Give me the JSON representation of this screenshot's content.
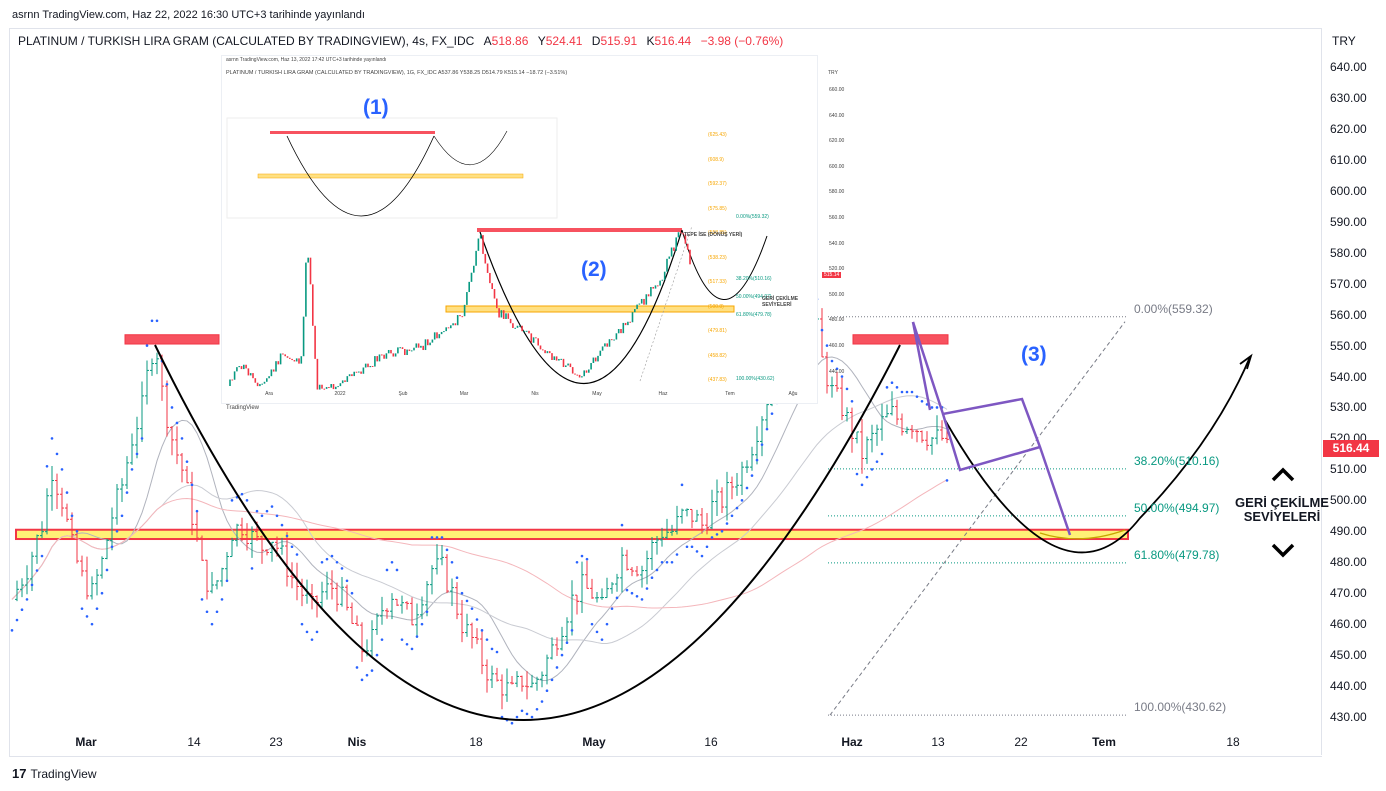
{
  "header": {
    "publisher_line": "asrnn TradingView.com, Haz 22, 2022 16:30 UTC+3 tarihinde yayınlandı",
    "symbol": "PLATINUM / TURKISH LIRA GRAM (CALCULATED BY TRADINGVIEW), 4s, FX_IDC",
    "open_label": "A",
    "open_value": "518.86",
    "high_label": "Y",
    "high_value": "524.41",
    "low_label": "D",
    "low_value": "515.91",
    "close_label": "K",
    "close_value": "516.44",
    "change": "−3.98 (−0.76%)",
    "currency": "TRY"
  },
  "price_badge": "516.44",
  "annotations": {
    "label_3": "(3)",
    "geri_line1": "GERİ ÇEKİLME",
    "geri_line2": "SEVİYELERİ"
  },
  "fib_levels": [
    {
      "label": "0.00%(559.32)",
      "price": 559.32,
      "color": "#787b86"
    },
    {
      "label": "38.20%(510.16)",
      "price": 510.16,
      "color": "#089981"
    },
    {
      "label": "50.00%(494.97)",
      "price": 494.97,
      "color": "#089981"
    },
    {
      "label": "61.80%(479.78)",
      "price": 479.78,
      "color": "#089981"
    },
    {
      "label": "100.00%(430.62)",
      "price": 430.62,
      "color": "#787b86"
    }
  ],
  "footer": {
    "logo_text": "TradingView",
    "logo_mark": "17"
  },
  "colors": {
    "up": "#089981",
    "down": "#f23645",
    "accent": "#2962ff",
    "pattern": "#7e57c2",
    "zone": "#ffeb3b",
    "resistance": "#f23645"
  },
  "chart_data": {
    "type": "candlestick",
    "timeframe": "4s",
    "currency": "TRY",
    "y_ticks": [
      "640.00",
      "630.00",
      "620.00",
      "610.00",
      "600.00",
      "590.00",
      "580.00",
      "570.00",
      "560.00",
      "550.00",
      "540.00",
      "530.00",
      "520.00",
      "510.00",
      "500.00",
      "490.00",
      "480.00",
      "470.00",
      "460.00",
      "450.00",
      "440.00",
      "430.00"
    ],
    "ylim": [
      428,
      644
    ],
    "x_ticks": [
      {
        "label": "Mar",
        "bold": true
      },
      {
        "label": "14",
        "bold": false
      },
      {
        "label": "23",
        "bold": false
      },
      {
        "label": "Nis",
        "bold": true
      },
      {
        "label": "18",
        "bold": false
      },
      {
        "label": "May",
        "bold": true
      },
      {
        "label": "16",
        "bold": false
      },
      {
        "label": "Haz",
        "bold": true
      },
      {
        "label": "13",
        "bold": false
      },
      {
        "label": "22",
        "bold": false
      },
      {
        "label": "Tem",
        "bold": true
      },
      {
        "label": "18",
        "bold": false
      }
    ],
    "price_path": [
      [
        0,
        468
      ],
      [
        3,
        478
      ],
      [
        6,
        492
      ],
      [
        8,
        510
      ],
      [
        10,
        500
      ],
      [
        12,
        485
      ],
      [
        14,
        475
      ],
      [
        16,
        470
      ],
      [
        18,
        480
      ],
      [
        20,
        495
      ],
      [
        22,
        505
      ],
      [
        24,
        520
      ],
      [
        26,
        530
      ],
      [
        27,
        540
      ],
      [
        28,
        548
      ],
      [
        29,
        548
      ],
      [
        30,
        535
      ],
      [
        32,
        520
      ],
      [
        34,
        510
      ],
      [
        36,
        495
      ],
      [
        38,
        478
      ],
      [
        40,
        470
      ],
      [
        42,
        478
      ],
      [
        44,
        490
      ],
      [
        46,
        492
      ],
      [
        48,
        488
      ],
      [
        50,
        485
      ],
      [
        52,
        488
      ],
      [
        54,
        482
      ],
      [
        56,
        475
      ],
      [
        58,
        470
      ],
      [
        60,
        465
      ],
      [
        62,
        470
      ],
      [
        64,
        472
      ],
      [
        66,
        468
      ],
      [
        68,
        460
      ],
      [
        70,
        452
      ],
      [
        72,
        455
      ],
      [
        74,
        465
      ],
      [
        76,
        470
      ],
      [
        78,
        465
      ],
      [
        80,
        462
      ],
      [
        82,
        470
      ],
      [
        84,
        478
      ],
      [
        86,
        478
      ],
      [
        88,
        470
      ],
      [
        90,
        460
      ],
      [
        92,
        455
      ],
      [
        94,
        448
      ],
      [
        96,
        442
      ],
      [
        98,
        440
      ],
      [
        100,
        438
      ],
      [
        102,
        442
      ],
      [
        104,
        440
      ],
      [
        106,
        445
      ],
      [
        108,
        452
      ],
      [
        110,
        460
      ],
      [
        112,
        468
      ],
      [
        114,
        472
      ],
      [
        116,
        470
      ],
      [
        118,
        465
      ],
      [
        120,
        475
      ],
      [
        122,
        482
      ],
      [
        124,
        480
      ],
      [
        126,
        478
      ],
      [
        128,
        485
      ],
      [
        130,
        490
      ],
      [
        132,
        490
      ],
      [
        134,
        495
      ],
      [
        136,
        495
      ],
      [
        138,
        492
      ],
      [
        140,
        498
      ],
      [
        142,
        500
      ],
      [
        144,
        505
      ],
      [
        146,
        510
      ],
      [
        148,
        518
      ],
      [
        150,
        528
      ],
      [
        152,
        538
      ],
      [
        154,
        545
      ],
      [
        156,
        548
      ],
      [
        158,
        550
      ],
      [
        160,
        556
      ],
      [
        161,
        555
      ],
      [
        162,
        545
      ],
      [
        164,
        535
      ],
      [
        166,
        530
      ],
      [
        168,
        522
      ],
      [
        170,
        515
      ],
      [
        172,
        520
      ],
      [
        174,
        525
      ],
      [
        176,
        528
      ],
      [
        178,
        525
      ],
      [
        180,
        525
      ],
      [
        182,
        522
      ],
      [
        184,
        520
      ],
      [
        186,
        520
      ],
      [
        187,
        516.44
      ]
    ],
    "bars_to_date": 187,
    "resistance": {
      "low": 550.5,
      "high": 553.5
    },
    "support_zone": {
      "low": 487.5,
      "high": 490.5
    },
    "fib_retracement": {
      "high": 559.32,
      "low": 430.62,
      "levels": [
        0,
        38.2,
        50,
        61.8,
        100
      ]
    },
    "target_projection": {
      "peak": 546
    },
    "inset_chart": {
      "label_1": "(1)",
      "label_2": "(2)",
      "header": "PLATINUM / TURKISH LIRA GRAM (CALCULATED BY TRADINGVIEW), 1G, FX_IDC  A537.86  Y538.25  D514.79  K515.14  −18.72 (−3.51%)",
      "publisher": "asrnn TradingView.com, Haz 13, 2022 17:42 UTC+3 tarihinde yayınlandı",
      "currency": "TRY",
      "y_ticks": [
        "660.00",
        "640.00",
        "620.00",
        "600.00",
        "580.00",
        "560.00",
        "540.00",
        "520.00",
        "500.00",
        "480.00",
        "460.00",
        "440.00"
      ],
      "x_ticks": [
        "Ara",
        "2022",
        "Şub",
        "Mar",
        "Nis",
        "May",
        "Haz",
        "Tem",
        "Ağu"
      ],
      "fib_labels": [
        "(625.43)",
        "(608.9)",
        "(592.37)",
        "(575.85)",
        "(558.85)",
        "(538.23)",
        "(517.33)",
        "(500.8)",
        "(479.81)",
        "(458.82)",
        "(437.83)"
      ],
      "green_labels": [
        "0.00%(559.32)",
        "38.20%(510.16)",
        "50.00%(494.97)",
        "61.80%(479.78)",
        "100.00%(430.62)"
      ],
      "tepe": "TEPE İSE (DÖNÜŞ YERİ)",
      "geri": "GERİ ÇEKİLME SEVİYELERİ",
      "price_badge": "515.14",
      "logo": "TradingView"
    }
  }
}
